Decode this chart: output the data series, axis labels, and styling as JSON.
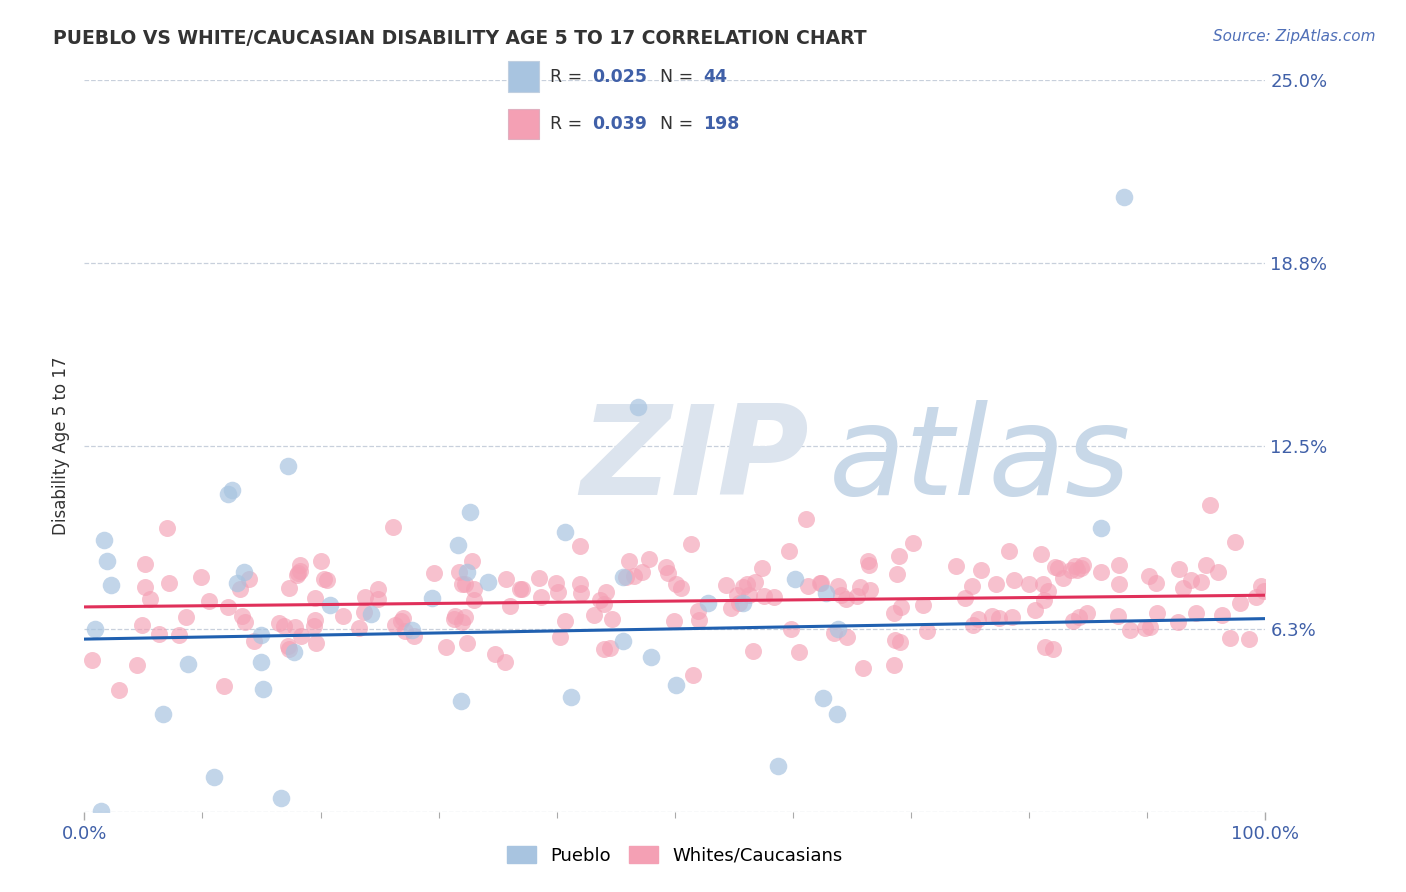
{
  "title": "PUEBLO VS WHITE/CAUCASIAN DISABILITY AGE 5 TO 17 CORRELATION CHART",
  "source": "Source: ZipAtlas.com",
  "ylabel": "Disability Age 5 to 17",
  "xlim": [
    0,
    1
  ],
  "ylim": [
    0,
    0.25
  ],
  "ytick_vals": [
    0.0,
    0.0625,
    0.125,
    0.1875,
    0.25
  ],
  "ytick_labels": [
    "",
    "6.3%",
    "12.5%",
    "18.8%",
    "25.0%"
  ],
  "xtick_labels": [
    "0.0%",
    "100.0%"
  ],
  "pueblo_R": "0.025",
  "pueblo_N": "44",
  "white_R": "0.039",
  "white_N": "198",
  "pueblo_color": "#a8c4e0",
  "white_color": "#f4a0b4",
  "pueblo_line_color": "#2060b0",
  "white_line_color": "#e0305a",
  "background_color": "#ffffff",
  "grid_color": "#c8d0dc",
  "title_color": "#333333",
  "tick_color": "#4060a8",
  "watermark_color": "#dce4ee",
  "source_color": "#5070b8",
  "legend_border_color": "#c8d0dc",
  "legend_text_color": "#333333"
}
